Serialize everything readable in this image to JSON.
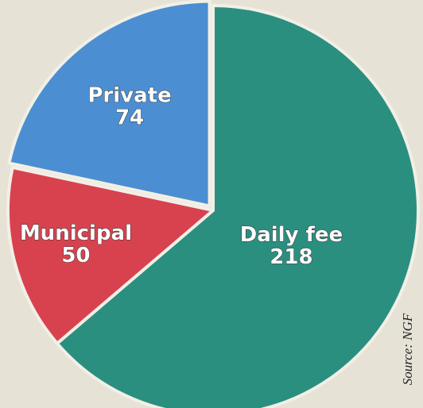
{
  "chart_data": {
    "type": "pie",
    "categories": [
      "Daily fee",
      "Municipal",
      "Private"
    ],
    "values": [
      218,
      50,
      74
    ],
    "colors": [
      "#2b8f80",
      "#d8424f",
      "#4b8fd2"
    ],
    "exploded": "Private",
    "source": "Source: NGF"
  }
}
